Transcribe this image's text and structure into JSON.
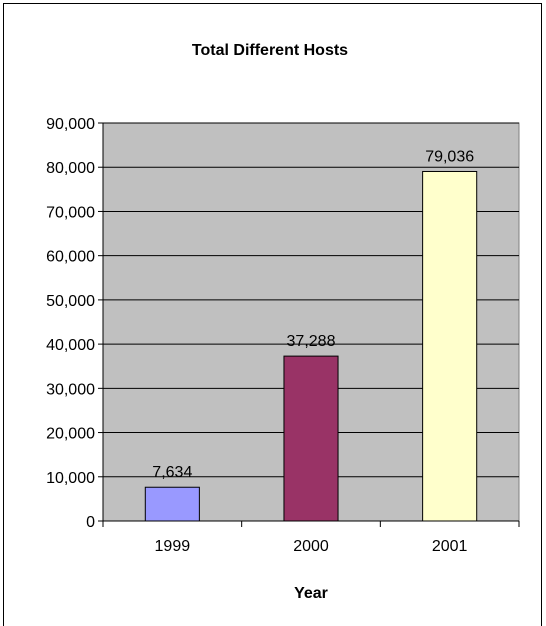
{
  "chart_data": {
    "type": "bar",
    "title": "Total Different Hosts",
    "xlabel": "Year",
    "ylabel": "",
    "categories": [
      "1999",
      "2000",
      "2001"
    ],
    "values": [
      7634,
      37288,
      79036
    ],
    "value_labels": [
      "7,634",
      "37,288",
      "79,036"
    ],
    "bar_colors": [
      "#9999ff",
      "#993366",
      "#ffffcc"
    ],
    "ylim": [
      0,
      90000
    ],
    "yticks": [
      0,
      10000,
      20000,
      30000,
      40000,
      50000,
      60000,
      70000,
      80000,
      90000
    ],
    "ytick_labels": [
      "0",
      "10,000",
      "20,000",
      "30,000",
      "40,000",
      "50,000",
      "60,000",
      "70,000",
      "80,000",
      "90,000"
    ],
    "grid": true,
    "plot_background": "#c0c0c0",
    "legend": "none"
  }
}
